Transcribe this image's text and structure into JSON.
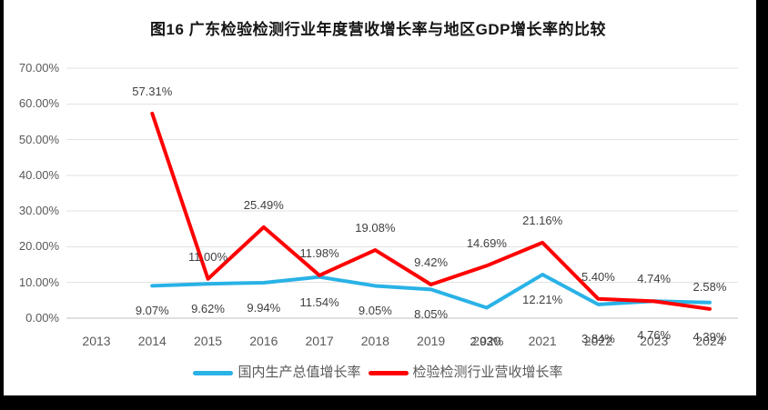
{
  "title": "图16 广东检验检测行业年度营收增长率与地区GDP增长率的比较",
  "chart_data": {
    "type": "line",
    "title": "图16 广东检验检测行业年度营收增长率与地区GDP增长率的比较",
    "categories": [
      "2013",
      "2014",
      "2015",
      "2016",
      "2017",
      "2018",
      "2019",
      "2020",
      "2021",
      "2022",
      "2023",
      "2024"
    ],
    "series": [
      {
        "name": "国内生产总值增长率",
        "color": "#29B2E6",
        "values": [
          null,
          9.07,
          9.62,
          9.94,
          11.54,
          9.05,
          8.05,
          2.93,
          12.21,
          3.84,
          4.76,
          4.39
        ],
        "label_position": "below"
      },
      {
        "name": "检验检测行业营收增长率",
        "color": "#FF0000",
        "values": [
          null,
          57.31,
          11.0,
          25.49,
          11.98,
          19.08,
          9.42,
          14.69,
          21.16,
          5.4,
          4.74,
          2.58
        ],
        "label_position": "above"
      }
    ],
    "y_axis": {
      "min": 0,
      "max": 70,
      "step": 10,
      "tick_format": "percent-2dp"
    },
    "grid": true,
    "data_labels": true,
    "legend_position": "bottom"
  },
  "colors": {
    "background": "#FFFFFF",
    "gridline": "#E2E2E2",
    "axis_line": "#C0C0C0",
    "tick_text": "#595959",
    "data_label_text": "#3F3F3F",
    "title_text": "#151515",
    "border": "#000000"
  }
}
